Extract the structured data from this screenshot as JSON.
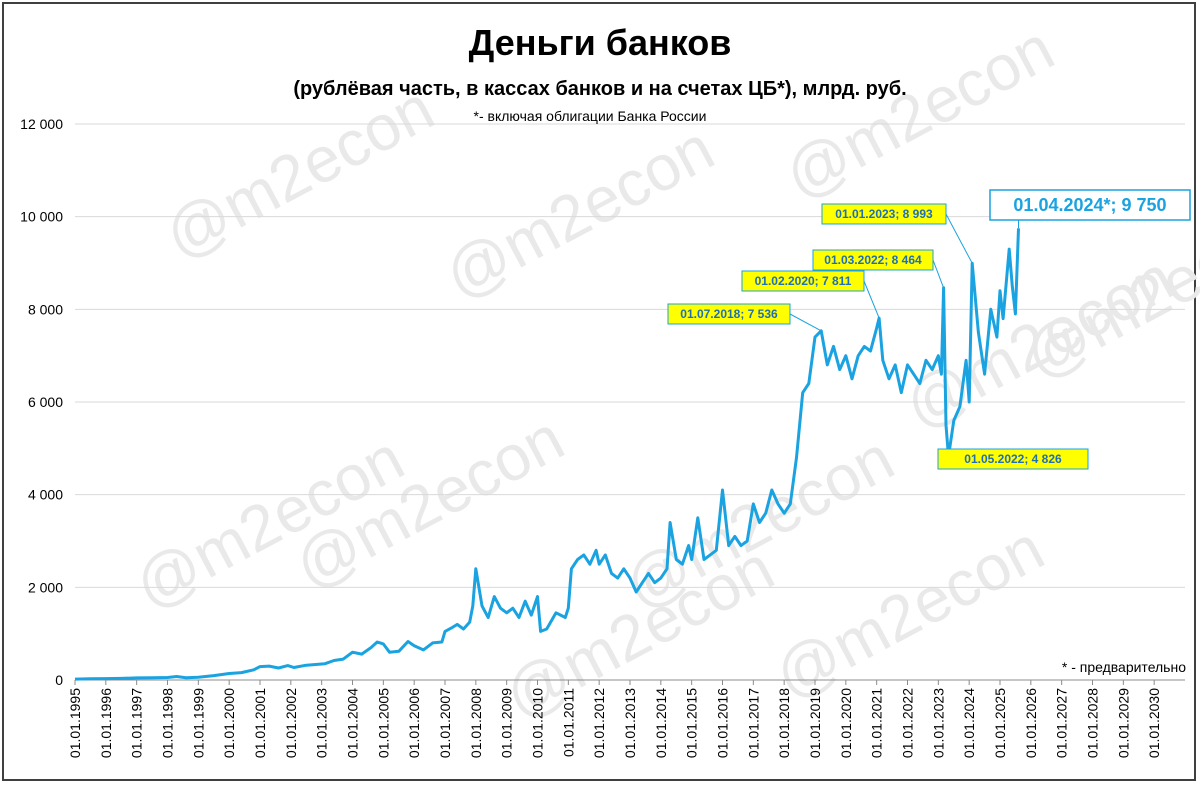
{
  "chart_data": {
    "type": "line",
    "title": "Деньги банков",
    "subtitle": "(рублёвая часть, в кассах банков и на счетах ЦБ*), млрд. руб.",
    "note_top": "*- включая облигации Банка России",
    "note_bottom": "* - предварительно",
    "watermark": "@m2econ",
    "ylim": [
      0,
      12000
    ],
    "y_ticks": [
      {
        "value": 0,
        "label": "0"
      },
      {
        "value": 2000,
        "label": "2 000"
      },
      {
        "value": 4000,
        "label": "4 000"
      },
      {
        "value": 6000,
        "label": "6 000"
      },
      {
        "value": 8000,
        "label": "8 000"
      },
      {
        "value": 10000,
        "label": "10 000"
      },
      {
        "value": 12000,
        "label": "12 000"
      }
    ],
    "xlim": [
      1995,
      2031
    ],
    "x_ticks": [
      "01.01.1995",
      "01.01.1996",
      "01.01.1997",
      "01.01.1998",
      "01.01.1999",
      "01.01.2000",
      "01.01.2001",
      "01.01.2002",
      "01.01.2003",
      "01.01.2004",
      "01.01.2005",
      "01.01.2006",
      "01.01.2007",
      "01.01.2008",
      "01.01.2009",
      "01.01.2010",
      "01.01.2011",
      "01.01.2012",
      "01.01.2013",
      "01.01.2014",
      "01.01.2015",
      "01.01.2016",
      "01.01.2017",
      "01.01.2018",
      "01.01.2019",
      "01.01.2020",
      "01.01.2021",
      "01.01.2022",
      "01.01.2023",
      "01.01.2024",
      "01.01.2025",
      "01.01.2026",
      "01.01.2027",
      "01.01.2028",
      "01.01.2029",
      "01.01.2030"
    ],
    "grid": true,
    "line_color": "#1aa3e0",
    "series": [
      {
        "points": [
          [
            1995.0,
            20
          ],
          [
            1995.5,
            25
          ],
          [
            1996.0,
            30
          ],
          [
            1996.5,
            35
          ],
          [
            1997.0,
            45
          ],
          [
            1997.5,
            50
          ],
          [
            1998.0,
            55
          ],
          [
            1998.3,
            75
          ],
          [
            1998.6,
            50
          ],
          [
            1999.0,
            60
          ],
          [
            1999.5,
            95
          ],
          [
            2000.0,
            140
          ],
          [
            2000.4,
            160
          ],
          [
            2000.8,
            220
          ],
          [
            2001.0,
            290
          ],
          [
            2001.3,
            300
          ],
          [
            2001.6,
            260
          ],
          [
            2001.9,
            310
          ],
          [
            2002.1,
            270
          ],
          [
            2002.5,
            320
          ],
          [
            2002.9,
            340
          ],
          [
            2003.1,
            350
          ],
          [
            2003.4,
            420
          ],
          [
            2003.7,
            450
          ],
          [
            2004.0,
            600
          ],
          [
            2004.3,
            560
          ],
          [
            2004.6,
            700
          ],
          [
            2004.8,
            820
          ],
          [
            2005.0,
            780
          ],
          [
            2005.2,
            600
          ],
          [
            2005.5,
            620
          ],
          [
            2005.8,
            830
          ],
          [
            2006.0,
            740
          ],
          [
            2006.3,
            650
          ],
          [
            2006.6,
            800
          ],
          [
            2006.9,
            820
          ],
          [
            2007.0,
            1050
          ],
          [
            2007.2,
            1120
          ],
          [
            2007.4,
            1200
          ],
          [
            2007.6,
            1100
          ],
          [
            2007.8,
            1250
          ],
          [
            2007.9,
            1600
          ],
          [
            2008.0,
            2400
          ],
          [
            2008.1,
            2000
          ],
          [
            2008.2,
            1600
          ],
          [
            2008.4,
            1350
          ],
          [
            2008.6,
            1800
          ],
          [
            2008.8,
            1550
          ],
          [
            2009.0,
            1450
          ],
          [
            2009.2,
            1550
          ],
          [
            2009.4,
            1350
          ],
          [
            2009.6,
            1700
          ],
          [
            2009.8,
            1400
          ],
          [
            2010.0,
            1800
          ],
          [
            2010.1,
            1050
          ],
          [
            2010.3,
            1100
          ],
          [
            2010.6,
            1450
          ],
          [
            2010.9,
            1350
          ],
          [
            2011.0,
            1550
          ],
          [
            2011.1,
            2400
          ],
          [
            2011.3,
            2600
          ],
          [
            2011.5,
            2700
          ],
          [
            2011.7,
            2500
          ],
          [
            2011.9,
            2800
          ],
          [
            2012.0,
            2500
          ],
          [
            2012.2,
            2700
          ],
          [
            2012.4,
            2300
          ],
          [
            2012.6,
            2200
          ],
          [
            2012.8,
            2400
          ],
          [
            2013.0,
            2200
          ],
          [
            2013.2,
            1900
          ],
          [
            2013.4,
            2100
          ],
          [
            2013.6,
            2300
          ],
          [
            2013.8,
            2100
          ],
          [
            2014.0,
            2200
          ],
          [
            2014.2,
            2400
          ],
          [
            2014.3,
            3400
          ],
          [
            2014.5,
            2600
          ],
          [
            2014.7,
            2500
          ],
          [
            2014.9,
            2900
          ],
          [
            2015.0,
            2600
          ],
          [
            2015.2,
            3500
          ],
          [
            2015.4,
            2600
          ],
          [
            2015.6,
            2700
          ],
          [
            2015.8,
            2800
          ],
          [
            2016.0,
            4100
          ],
          [
            2016.2,
            2900
          ],
          [
            2016.4,
            3100
          ],
          [
            2016.6,
            2900
          ],
          [
            2016.8,
            3000
          ],
          [
            2017.0,
            3800
          ],
          [
            2017.2,
            3400
          ],
          [
            2017.4,
            3600
          ],
          [
            2017.6,
            4100
          ],
          [
            2017.8,
            3800
          ],
          [
            2018.0,
            3600
          ],
          [
            2018.2,
            3800
          ],
          [
            2018.4,
            4800
          ],
          [
            2018.6,
            6200
          ],
          [
            2018.8,
            6400
          ],
          [
            2019.0,
            7400
          ],
          [
            2019.2,
            7536
          ],
          [
            2019.4,
            6800
          ],
          [
            2019.6,
            7200
          ],
          [
            2019.8,
            6700
          ],
          [
            2020.0,
            7000
          ],
          [
            2020.2,
            6500
          ],
          [
            2020.4,
            7000
          ],
          [
            2020.6,
            7200
          ],
          [
            2020.8,
            7100
          ],
          [
            2021.0,
            7600
          ],
          [
            2021.08,
            7811
          ],
          [
            2021.2,
            6900
          ],
          [
            2021.4,
            6500
          ],
          [
            2021.6,
            6800
          ],
          [
            2021.8,
            6200
          ],
          [
            2022.0,
            6800
          ],
          [
            2022.2,
            6600
          ],
          [
            2022.4,
            6400
          ],
          [
            2022.6,
            6900
          ],
          [
            2022.8,
            6700
          ],
          [
            2023.0,
            7000
          ],
          [
            2023.1,
            6600
          ],
          [
            2023.17,
            8464
          ],
          [
            2023.25,
            5500
          ],
          [
            2023.33,
            4826
          ],
          [
            2023.5,
            5600
          ],
          [
            2023.7,
            5900
          ],
          [
            2023.9,
            6900
          ],
          [
            2024.0,
            6000
          ],
          [
            2024.1,
            8993
          ],
          [
            2024.3,
            7500
          ],
          [
            2024.5,
            6600
          ],
          [
            2024.7,
            8000
          ],
          [
            2024.9,
            7400
          ],
          [
            2025.0,
            8400
          ],
          [
            2025.1,
            7800
          ],
          [
            2025.3,
            9300
          ],
          [
            2025.4,
            8500
          ],
          [
            2025.5,
            7900
          ],
          [
            2025.6,
            9750
          ]
        ]
      }
    ],
    "annotations": [
      {
        "label": "01.07.2018;  7 536",
        "x": 2019.2,
        "y": 7536
      },
      {
        "label": "01.02.2020;  7 811",
        "x": 2021.08,
        "y": 7811
      },
      {
        "label": "01.03.2022;  8 464",
        "x": 2023.17,
        "y": 8464
      },
      {
        "label": "01.01.2023;  8 993",
        "x": 2024.1,
        "y": 8993
      },
      {
        "label": "01.05.2022;  4 826",
        "x": 2023.33,
        "y": 4826
      },
      {
        "label": "01.04.2024*;  9 750",
        "x": 2025.6,
        "y": 9750
      }
    ]
  }
}
